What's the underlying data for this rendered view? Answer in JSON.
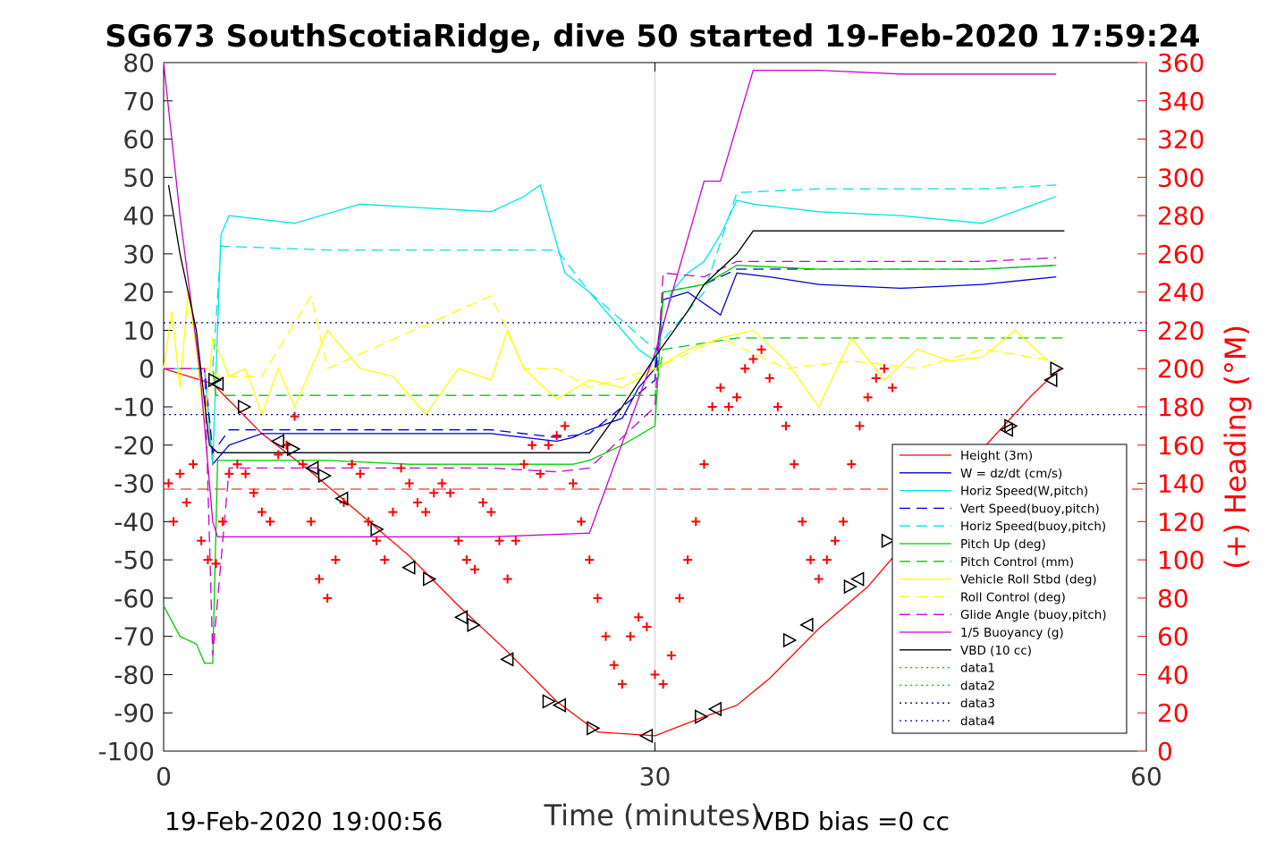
{
  "title": "SG673 SouthScotiaRidge, dive 50 started 19-Feb-2020 17:59:24",
  "footer": {
    "timestamp": "19-Feb-2020 19:00:56",
    "vbd_bias": "VBD bias =0 cc"
  },
  "chart_data": {
    "type": "line",
    "title": "SG673 SouthScotiaRidge, dive 50 started 19-Feb-2020 17:59:24",
    "xlabel": "Time (minutes)",
    "ylabel_left": "",
    "ylabel_right": "(+) Heading (°M)",
    "xlim": [
      0,
      60
    ],
    "ylim_left": [
      -100,
      80
    ],
    "ylim_right": [
      0,
      360
    ],
    "x_ticks": [
      0,
      30,
      60
    ],
    "y_ticks_left": [
      80,
      70,
      60,
      50,
      40,
      30,
      20,
      10,
      0,
      -10,
      -20,
      -30,
      -40,
      -50,
      -60,
      -70,
      -80,
      -90,
      -100
    ],
    "y_ticks_right": [
      360,
      340,
      320,
      300,
      280,
      260,
      240,
      220,
      200,
      180,
      160,
      140,
      120,
      100,
      80,
      60,
      40,
      20,
      0
    ],
    "grid": "x=30 only",
    "legend_position": "bottom-right",
    "colors": {
      "red": "#ff0000",
      "blue": "#0000cc",
      "cyan": "#00e5e5",
      "green": "#00cc00",
      "yellow": "#ffff00",
      "magenta": "#cc00cc",
      "black": "#000000"
    },
    "series": [
      {
        "name": "Height (3m)",
        "color": "#ff0000",
        "style": "solid",
        "x": [
          0,
          3,
          6,
          9,
          12,
          15,
          18,
          21,
          24,
          26.5,
          30,
          33,
          35,
          37,
          40,
          43,
          46,
          50,
          53,
          54.7
        ],
        "y": [
          0,
          -4,
          -17,
          -27,
          -38,
          -49,
          -62,
          -74,
          -87,
          -95,
          -96,
          -91,
          -88,
          -81,
          -68,
          -57,
          -42,
          -21,
          -7,
          0
        ]
      },
      {
        "name": "W = dz/dt (cm/s)",
        "color": "#0000cc",
        "style": "solid",
        "x": [
          0,
          2.5,
          3,
          4,
          6,
          10,
          15,
          20,
          24,
          25,
          26,
          28,
          29,
          30,
          30.5,
          32,
          34,
          35,
          37,
          40,
          45,
          50,
          54.5
        ],
        "y": [
          0,
          0,
          -25,
          -20,
          -17,
          -17,
          -17,
          -17,
          -19,
          -18,
          -16,
          -13,
          -5,
          0,
          18,
          20,
          14,
          25,
          24,
          22,
          21,
          22,
          24
        ]
      },
      {
        "name": "Horiz Speed(W,pitch)",
        "color": "#00e5e5",
        "style": "solid",
        "x": [
          0,
          2.5,
          3,
          3.5,
          4,
          8,
          12,
          16,
          20,
          22,
          23,
          24.5,
          26,
          28,
          29,
          30,
          31,
          32,
          33,
          34,
          35,
          36,
          40,
          45,
          50,
          54.5
        ],
        "y": [
          0,
          0,
          -25,
          35,
          40,
          38,
          43,
          42,
          41,
          45,
          48,
          25,
          20,
          10,
          5,
          2,
          20,
          25,
          28,
          35,
          44,
          43,
          41,
          40,
          38,
          45
        ]
      },
      {
        "name": "Vert Speed(buoy,pitch)",
        "color": "#0000cc",
        "style": "dash",
        "x": [
          0,
          2.5,
          3,
          4,
          10,
          20,
          24,
          26,
          28,
          30,
          30.5,
          33,
          35,
          40,
          45,
          50,
          54.5
        ],
        "y": [
          0,
          0,
          -22,
          -16,
          -16,
          -16,
          -18,
          -17,
          -10,
          -3,
          20,
          22,
          26,
          26,
          26,
          26,
          27
        ]
      },
      {
        "name": "Horiz Speed(buoy,pitch)",
        "color": "#00e5e5",
        "style": "dash",
        "x": [
          0,
          3,
          3.5,
          10,
          15,
          20,
          24,
          26,
          30,
          33,
          35,
          40,
          45,
          50,
          54.5
        ],
        "y": [
          0,
          0,
          32,
          31,
          31,
          31,
          31,
          20,
          5,
          20,
          46,
          47,
          47,
          47,
          48
        ]
      },
      {
        "name": "Pitch Up (deg)",
        "color": "#00cc00",
        "style": "solid",
        "x": [
          0,
          1,
          2,
          2.5,
          3,
          3.3,
          4,
          10,
          15,
          20,
          25,
          26,
          28,
          30,
          30.5,
          33,
          35,
          40,
          45,
          50,
          54.5
        ],
        "y": [
          -62,
          -70,
          -72,
          -77,
          -77,
          -24,
          -24,
          -24,
          -25,
          -25,
          -25,
          -24,
          -20,
          -15,
          20,
          22,
          27,
          26,
          26,
          26,
          27
        ]
      },
      {
        "name": "Pitch Control (mm)",
        "color": "#00cc00",
        "style": "dash",
        "x": [
          0,
          3,
          3.2,
          26,
          30,
          30.5,
          35,
          40,
          45,
          50,
          55
        ],
        "y": [
          0,
          0,
          -7,
          -7,
          -7,
          5,
          8,
          8,
          8,
          8,
          8
        ]
      },
      {
        "name": "Vehicle Roll Stbd (deg)",
        "color": "#ffff00",
        "style": "solid",
        "x": [
          0,
          0.5,
          1,
          1.5,
          2,
          2.5,
          3,
          4,
          5,
          6,
          7,
          8,
          9,
          10,
          12,
          14,
          16,
          18,
          20,
          21,
          22,
          24,
          26,
          28,
          30,
          32,
          34,
          36,
          38,
          40,
          42,
          44,
          46,
          48,
          50,
          52,
          54
        ],
        "y": [
          0,
          15,
          -5,
          20,
          5,
          -15,
          8,
          -2,
          0,
          -12,
          0,
          -10,
          0,
          10,
          0,
          -2,
          -12,
          0,
          -3,
          10,
          0,
          -8,
          -3,
          -5,
          0,
          5,
          8,
          10,
          2,
          -10,
          8,
          -3,
          5,
          2,
          3,
          10,
          2
        ]
      },
      {
        "name": "Roll Control (deg)",
        "color": "#ffff00",
        "style": "dash",
        "x": [
          0,
          3,
          3.2,
          6,
          9,
          10,
          20,
          22,
          24,
          26,
          30,
          34,
          38,
          42,
          46,
          50,
          54.5
        ],
        "y": [
          0,
          0,
          -2,
          -2,
          19,
          0,
          19,
          0,
          0,
          -5,
          0,
          8,
          0,
          2,
          0,
          5,
          2
        ]
      },
      {
        "name": "Glide Angle (buoy,pitch)",
        "color": "#cc00cc",
        "style": "dash",
        "x": [
          0,
          2.5,
          3,
          4,
          10,
          20,
          24,
          26,
          28,
          30,
          30.5,
          33,
          35,
          40,
          45,
          50,
          54.5
        ],
        "y": [
          0,
          0,
          -75,
          -26,
          -26,
          -26,
          -27,
          -26,
          -18,
          -10,
          25,
          24,
          28,
          28,
          28,
          28,
          29
        ]
      },
      {
        "name": "1/5 Buoyancy (g)",
        "color": "#cc00cc",
        "style": "solid",
        "x": [
          0,
          1,
          2.2,
          3,
          3.3,
          10,
          20,
          26,
          30,
          33,
          34,
          36,
          40,
          45,
          50,
          54.5
        ],
        "y": [
          80,
          40,
          0,
          -40,
          -44,
          -44,
          -44,
          -43,
          4,
          49,
          49,
          78,
          78,
          77,
          77,
          77
        ]
      },
      {
        "name": "VBD (10 cc)",
        "color": "#000000",
        "style": "solid",
        "x": [
          0.3,
          1,
          2,
          2.8,
          3.3,
          4,
          26,
          28,
          30,
          32,
          33,
          35,
          36,
          55
        ],
        "y": [
          48,
          30,
          10,
          -20,
          -22,
          -22,
          -22,
          -10,
          3,
          15,
          22,
          30,
          36,
          36
        ]
      },
      {
        "name": "data1",
        "color": "#00cc00",
        "style": "dot",
        "x": [],
        "y": []
      },
      {
        "name": "data2",
        "color": "#00cc00",
        "style": "dot",
        "x": [],
        "y": []
      },
      {
        "name": "data3",
        "color": "#000080",
        "style": "dot",
        "x": [
          0,
          60
        ],
        "y": [
          -12,
          -12
        ]
      },
      {
        "name": "data4",
        "color": "#000080",
        "style": "dot",
        "x": [
          0,
          60
        ],
        "y": [
          12,
          12
        ]
      }
    ],
    "reference_lines": [
      {
        "color": "#ff0000",
        "style": "dash",
        "y": -31.5
      }
    ],
    "heading_points": {
      "marker": "+",
      "color": "#ff0000",
      "axis": "right",
      "x": [
        0.3,
        0.6,
        1.0,
        1.4,
        1.8,
        2.3,
        2.7,
        3.2,
        3.6,
        4.0,
        4.5,
        5.0,
        5.5,
        6.0,
        6.5,
        7.0,
        7.5,
        8.0,
        8.5,
        9.0,
        9.5,
        10.0,
        10.5,
        11.0,
        11.5,
        12.0,
        12.5,
        13.0,
        13.5,
        14.0,
        14.5,
        15.0,
        15.5,
        16.0,
        16.5,
        17.0,
        17.5,
        18.0,
        18.5,
        19.0,
        19.5,
        20.0,
        20.5,
        21.0,
        21.5,
        22.0,
        22.5,
        23.0,
        23.5,
        24.0,
        24.5,
        25.0,
        25.5,
        26.0,
        26.5,
        27.0,
        27.5,
        28.0,
        28.5,
        29.0,
        29.5,
        30.0,
        30.5,
        31.0,
        31.5,
        32.0,
        32.5,
        33.0,
        33.5,
        34.0,
        34.5,
        35.0,
        35.5,
        36.0,
        36.5,
        37.0,
        37.5,
        38.0,
        38.5,
        39.0,
        39.5,
        40.0,
        40.5,
        41.0,
        41.5,
        42.0,
        42.5,
        43.0,
        43.5,
        44.0,
        44.5
      ],
      "y": [
        140,
        120,
        145,
        130,
        150,
        110,
        100,
        98,
        120,
        145,
        150,
        145,
        135,
        125,
        120,
        155,
        160,
        175,
        150,
        120,
        90,
        80,
        100,
        130,
        150,
        145,
        120,
        110,
        100,
        125,
        148,
        140,
        130,
        125,
        135,
        140,
        135,
        110,
        100,
        95,
        130,
        125,
        110,
        90,
        110,
        150,
        160,
        145,
        160,
        165,
        170,
        140,
        120,
        100,
        80,
        60,
        45,
        35,
        60,
        70,
        65,
        40,
        35,
        50,
        80,
        100,
        120,
        150,
        180,
        190,
        180,
        185,
        200,
        205,
        210,
        195,
        180,
        170,
        150,
        120,
        100,
        90,
        100,
        110,
        120,
        150,
        170,
        185,
        195,
        200,
        190
      ]
    },
    "turn_markers": {
      "marker": "triangle",
      "color": "#000000",
      "x": [
        3.1,
        3.3,
        4.9,
        7.0,
        7.9,
        9.1,
        9.8,
        10.9,
        13.0,
        15.0,
        16.2,
        18.2,
        18.9,
        21.0,
        23.5,
        24.2,
        26.2,
        29.5,
        32.8,
        33.7,
        38.2,
        39.3,
        41.9,
        42.4,
        44.2,
        51.5,
        51.7,
        54.2,
        54.5
      ],
      "y": [
        -3,
        -4,
        -10,
        -19,
        -21,
        -26,
        -28,
        -34,
        -42,
        -52,
        -55,
        -65,
        -67,
        -76,
        -87,
        -88,
        -94,
        -96,
        -91,
        -89,
        -71,
        -67,
        -57,
        -55,
        -45,
        -16,
        -15,
        -3,
        0
      ]
    }
  }
}
